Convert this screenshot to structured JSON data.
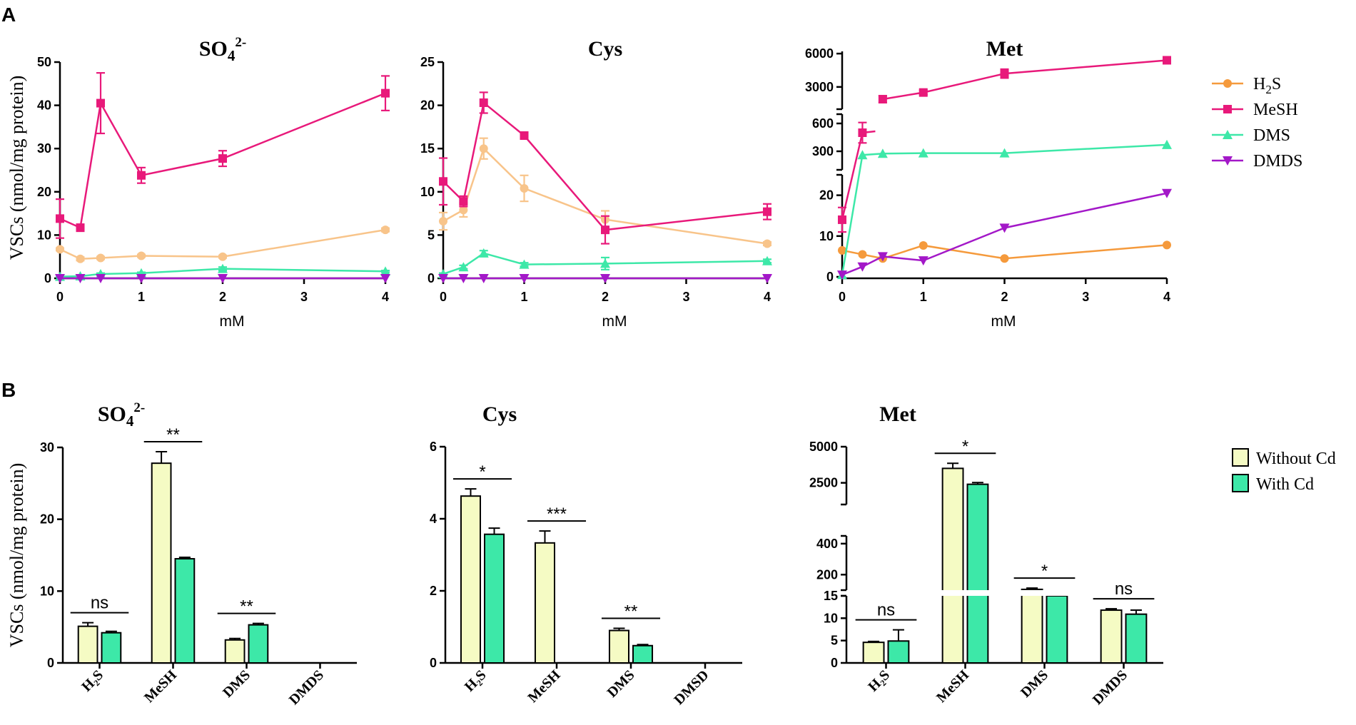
{
  "panels": {
    "a": "A",
    "b": "B"
  },
  "ylabel": "VSCs (nmol/mg protein)",
  "xlabel": "mM",
  "legend_line": [
    {
      "name": "H2S",
      "color": "#f59a3c",
      "marker": "circle"
    },
    {
      "name": "MeSH",
      "color": "#e8197a",
      "marker": "square"
    },
    {
      "name": "DMS",
      "color": "#3de8a8",
      "marker": "triangle-up"
    },
    {
      "name": "DMDS",
      "color": "#a318c8",
      "marker": "triangle-down"
    }
  ],
  "legend_bar": [
    {
      "name": "Without Cd",
      "color": "#f5fbc4"
    },
    {
      "name": "With Cd",
      "color": "#3de8a8"
    }
  ],
  "colors": {
    "h2s_light": "#f8c48a",
    "axis": "#000000"
  },
  "chart_data": [
    {
      "type": "line",
      "title_main": "SO",
      "title_sub": "4",
      "title_sup": "2-",
      "xlabel": "mM",
      "ylabel": "VSCs (nmol/mg protein)",
      "x": [
        0,
        0.25,
        0.5,
        1,
        2,
        4
      ],
      "xticks": [
        "0",
        "1",
        "2",
        "3",
        "4"
      ],
      "ylim": [
        0,
        50
      ],
      "yticks": [
        "0",
        "10",
        "20",
        "30",
        "40",
        "50"
      ],
      "series": [
        {
          "name": "H2S",
          "values": [
            6.7,
            4.5,
            4.7,
            5.2,
            5.0,
            11.2
          ],
          "err": [
            0.3,
            0.4,
            0.3,
            0.3,
            0.3,
            0.4
          ]
        },
        {
          "name": "MeSH",
          "values": [
            13.8,
            11.7,
            40.5,
            23.8,
            27.7,
            42.8
          ],
          "err": [
            4.5,
            0.8,
            7.0,
            1.8,
            1.8,
            4.0
          ]
        },
        {
          "name": "DMS",
          "values": [
            0.4,
            0.5,
            1.0,
            1.2,
            2.2,
            1.6
          ],
          "err": [
            0.1,
            0.1,
            0.2,
            0.2,
            0.4,
            0.2
          ]
        },
        {
          "name": "DMDS",
          "values": [
            0,
            0,
            0,
            0,
            0,
            0
          ],
          "err": [
            0,
            0,
            0,
            0,
            0,
            0
          ]
        }
      ]
    },
    {
      "type": "line",
      "title_main": "Cys",
      "xlabel": "mM",
      "ylabel": "",
      "x": [
        0,
        0.25,
        0.5,
        1,
        2,
        4
      ],
      "xticks": [
        "0",
        "1",
        "2",
        "3",
        "4"
      ],
      "ylim": [
        0,
        25
      ],
      "yticks": [
        "0",
        "5",
        "10",
        "15",
        "20",
        "25"
      ],
      "series": [
        {
          "name": "H2S",
          "values": [
            6.6,
            7.9,
            15.0,
            10.4,
            6.8,
            4.0
          ],
          "err": [
            1.0,
            0.8,
            1.2,
            1.5,
            1.0,
            0.2
          ]
        },
        {
          "name": "MeSH",
          "values": [
            11.2,
            8.9,
            20.3,
            16.5,
            5.6,
            7.7
          ],
          "err": [
            2.7,
            0.6,
            1.2,
            0.4,
            1.6,
            0.9
          ]
        },
        {
          "name": "DMS",
          "values": [
            0.5,
            1.3,
            2.9,
            1.6,
            1.7,
            2.0
          ],
          "err": [
            0.1,
            0.2,
            0.3,
            0.2,
            0.7,
            0.2
          ]
        },
        {
          "name": "DMDS",
          "values": [
            0,
            0,
            0,
            0,
            0,
            0
          ],
          "err": [
            0,
            0,
            0,
            0,
            0,
            0
          ]
        }
      ]
    },
    {
      "type": "line",
      "title_main": "Met",
      "xlabel": "mM",
      "ylabel": "",
      "x": [
        0,
        0.25,
        0.5,
        1,
        2,
        4
      ],
      "xticks": [
        "0",
        "1",
        "2",
        "3",
        "4"
      ],
      "segments": [
        {
          "range": [
            0,
            25
          ],
          "ticks": [
            "0",
            "10",
            "20"
          ],
          "tickvals": [
            0,
            10,
            20
          ]
        },
        {
          "range": [
            100,
            700
          ],
          "ticks": [
            "300",
            "600"
          ],
          "tickvals": [
            300,
            600
          ]
        },
        {
          "range": [
            1000,
            6200
          ],
          "ticks": [
            "3000",
            "6000"
          ],
          "tickvals": [
            3000,
            6000
          ]
        }
      ],
      "series": [
        {
          "name": "H2S",
          "values": [
            6.5,
            5.5,
            4.5,
            7.7,
            4.5,
            7.8
          ],
          "err": [
            0,
            0,
            0,
            0,
            0,
            0
          ]
        },
        {
          "name": "MeSH",
          "values": [
            14,
            500,
            1900,
            2500,
            4200,
            5400
          ],
          "err": [
            3,
            110,
            300,
            200,
            400,
            100
          ]
        },
        {
          "name": "DMS",
          "values": [
            0.5,
            260,
            275,
            280,
            280,
            370
          ],
          "err": [
            0,
            0,
            0,
            0,
            0,
            0
          ]
        },
        {
          "name": "DMDS",
          "values": [
            0.5,
            2.5,
            5.0,
            4.0,
            12.0,
            20.5
          ],
          "err": [
            0,
            0,
            0,
            0,
            0,
            0
          ]
        }
      ]
    },
    {
      "type": "bar",
      "title_main": "SO",
      "title_sub": "4",
      "title_sup": "2-",
      "ylabel": "VSCs (nmol/mg protein)",
      "categories": [
        "H₂S",
        "MeSH",
        "DMS",
        "DMDS"
      ],
      "ylim": [
        0,
        30
      ],
      "yticks": [
        "0",
        "10",
        "20",
        "30"
      ],
      "series": [
        {
          "name": "Without Cd",
          "values": [
            5.1,
            27.8,
            3.2,
            0
          ],
          "err": [
            0.5,
            1.6,
            0.2,
            0
          ]
        },
        {
          "name": "With Cd",
          "values": [
            4.2,
            14.5,
            5.3,
            0
          ],
          "err": [
            0.2,
            0.2,
            0.2,
            0
          ]
        }
      ],
      "significance": [
        "ns",
        "**",
        "**",
        ""
      ]
    },
    {
      "type": "bar",
      "title_main": "Cys",
      "categories": [
        "H₂S",
        "MeSH",
        "DMS",
        "DMSD"
      ],
      "ylim": [
        0,
        6
      ],
      "yticks": [
        "0",
        "2",
        "4",
        "6"
      ],
      "series": [
        {
          "name": "Without Cd",
          "values": [
            4.63,
            3.33,
            0.9,
            0
          ],
          "err": [
            0.2,
            0.33,
            0.06,
            0
          ]
        },
        {
          "name": "With Cd",
          "values": [
            3.57,
            0,
            0.48,
            0
          ],
          "err": [
            0.17,
            0,
            0.03,
            0
          ]
        }
      ],
      "significance": [
        "*",
        "***",
        "**",
        ""
      ]
    },
    {
      "type": "bar",
      "title_main": "Met",
      "categories": [
        "H₂S",
        "MeSH",
        "DMS",
        "DMDS"
      ],
      "segments": [
        {
          "range": [
            0,
            15
          ],
          "ticks": [
            "0",
            "5",
            "10",
            "15"
          ],
          "tickvals": [
            0,
            5,
            10,
            15
          ]
        },
        {
          "range": [
            100,
            450
          ],
          "ticks": [
            "200",
            "400"
          ],
          "tickvals": [
            200,
            400
          ]
        },
        {
          "range": [
            1000,
            5000
          ],
          "ticks": [
            "2500",
            "5000"
          ],
          "tickvals": [
            2500,
            5000
          ]
        }
      ],
      "series": [
        {
          "name": "Without Cd",
          "values": [
            4.6,
            3500,
            105,
            11.8
          ],
          "err": [
            0.2,
            350,
            8,
            0.3
          ]
        },
        {
          "name": "With Cd",
          "values": [
            4.9,
            2400,
            68,
            10.9
          ],
          "err": [
            2.5,
            120,
            3,
            0.9
          ]
        }
      ],
      "significance": [
        "ns",
        "*",
        "*",
        "ns"
      ]
    }
  ]
}
